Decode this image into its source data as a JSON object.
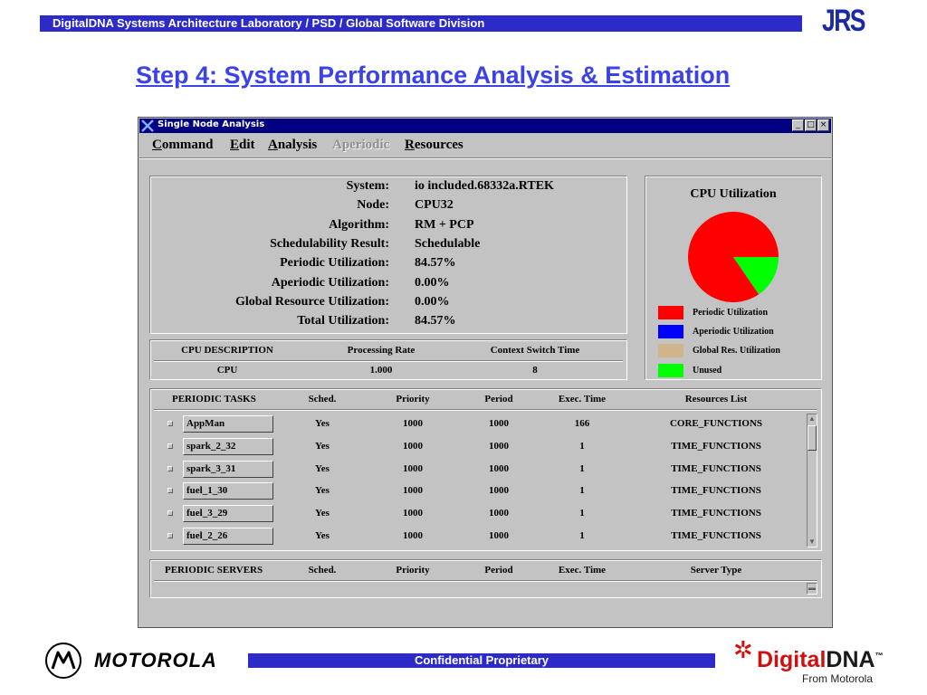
{
  "header": {
    "bar_text": "DigitalDNA Systems Architecture Laboratory / PSD / Global Software Division",
    "logo_text": "JRS",
    "title": "Step 4:  System Performance Analysis & Estimation"
  },
  "window": {
    "title": "Single Node Analysis",
    "buttons": [
      "_",
      "□",
      "×"
    ],
    "menu": [
      {
        "label": "Command",
        "u": "C",
        "rest": "ommand",
        "enabled": true
      },
      {
        "label": "Edit",
        "u": "E",
        "rest": "dit",
        "enabled": true
      },
      {
        "label": "Analysis",
        "u": "A",
        "rest": "nalysis",
        "enabled": true
      },
      {
        "label": "Aperiodic",
        "u": "",
        "rest": "Aperiodic",
        "enabled": false
      },
      {
        "label": "Resources",
        "u": "R",
        "rest": "esources",
        "enabled": true
      }
    ]
  },
  "summary": [
    {
      "label": "System:",
      "value": "io included.68332a.RTEK"
    },
    {
      "label": "Node:",
      "value": "CPU32"
    },
    {
      "label": "Algorithm:",
      "value": "RM + PCP"
    },
    {
      "label": "Schedulability Result:",
      "value": "Schedulable"
    },
    {
      "label": "Periodic Utilization:",
      "value": "84.57%"
    },
    {
      "label": "Aperiodic Utilization:",
      "value": "0.00%"
    },
    {
      "label": "Global Resource Utilization:",
      "value": "0.00%"
    },
    {
      "label": "Total Utilization:",
      "value": "84.57%"
    }
  ],
  "cpu_table": {
    "headers": [
      "CPU DESCRIPTION",
      "Processing Rate",
      "Context Switch Time"
    ],
    "row": [
      "CPU",
      "1.000",
      "8"
    ]
  },
  "periodic_tasks": {
    "headers": [
      "PERIODIC TASKS",
      "Sched.",
      "Priority",
      "Period",
      "Exec. Time",
      "Resources List"
    ],
    "rows": [
      {
        "name": "AppMan",
        "sched": "Yes",
        "priority": "1000",
        "period": "1000",
        "exec": "166",
        "resources": "CORE_FUNCTIONS"
      },
      {
        "name": "spark_2_32",
        "sched": "Yes",
        "priority": "1000",
        "period": "1000",
        "exec": "1",
        "resources": "TIME_FUNCTIONS"
      },
      {
        "name": "spark_3_31",
        "sched": "Yes",
        "priority": "1000",
        "period": "1000",
        "exec": "1",
        "resources": "TIME_FUNCTIONS"
      },
      {
        "name": "fuel_1_30",
        "sched": "Yes",
        "priority": "1000",
        "period": "1000",
        "exec": "1",
        "resources": "TIME_FUNCTIONS"
      },
      {
        "name": "fuel_3_29",
        "sched": "Yes",
        "priority": "1000",
        "period": "1000",
        "exec": "1",
        "resources": "TIME_FUNCTIONS"
      },
      {
        "name": "fuel_2_26",
        "sched": "Yes",
        "priority": "1000",
        "period": "1000",
        "exec": "1",
        "resources": "TIME_FUNCTIONS"
      }
    ]
  },
  "periodic_servers": {
    "headers": [
      "PERIODIC SERVERS",
      "Sched.",
      "Priority",
      "Period",
      "Exec. Time",
      "Server Type"
    ]
  },
  "chart_data": {
    "type": "pie",
    "title": "CPU Utilization",
    "labels": [
      "Periodic Utilization",
      "Aperiodic Utilization",
      "Global Res. Utilization",
      "Unused"
    ],
    "values": [
      84.57,
      0.0,
      0.0,
      15.43
    ],
    "colors": [
      "#ff0000",
      "#0000ff",
      "#d2b48c",
      "#00ff00"
    ],
    "legend": "bottom"
  },
  "footer": {
    "motorola": "MOTOROLA",
    "confidential": "Confidential Proprietary",
    "dna_a": "Digital",
    "dna_b": "DNA",
    "dna_tm": "™",
    "dna_sub": "From Motorola"
  }
}
